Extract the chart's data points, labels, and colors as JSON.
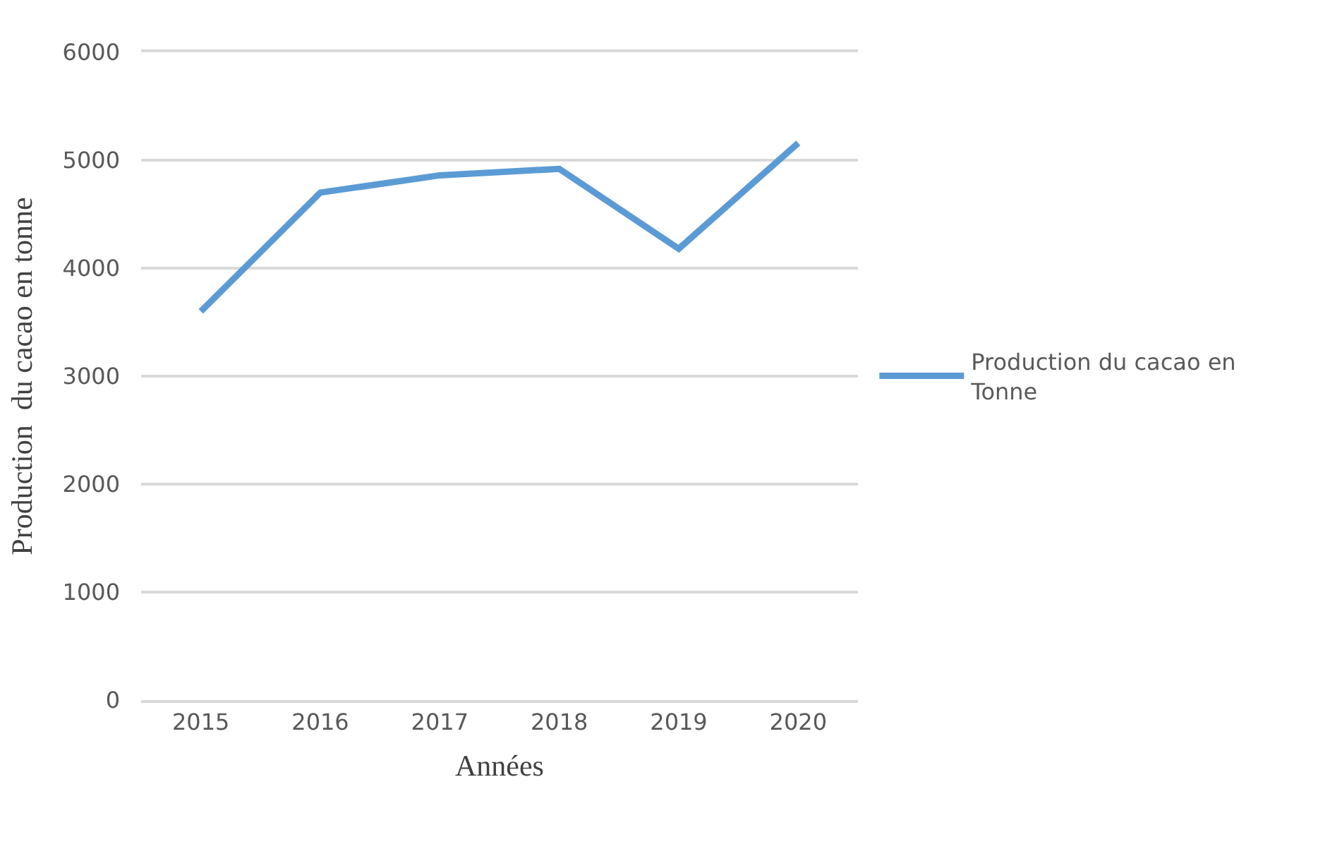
{
  "chart_data": {
    "type": "line",
    "xlabel": "Années",
    "ylabel": "Production  du cacao en tonne",
    "categories": [
      "2015",
      "2016",
      "2017",
      "2018",
      "2019",
      "2020"
    ],
    "series": [
      {
        "name": "Production du cacao en Tonne",
        "color": "#5b9bd5",
        "values": [
          3600,
          4700,
          4860,
          4920,
          4180,
          5160
        ]
      }
    ],
    "ylim": [
      0,
      6000
    ],
    "yticks": [
      0,
      1000,
      2000,
      3000,
      4000,
      5000,
      6000
    ],
    "grid": "y",
    "legend": "right",
    "marker": "none",
    "line_style": "solid"
  }
}
